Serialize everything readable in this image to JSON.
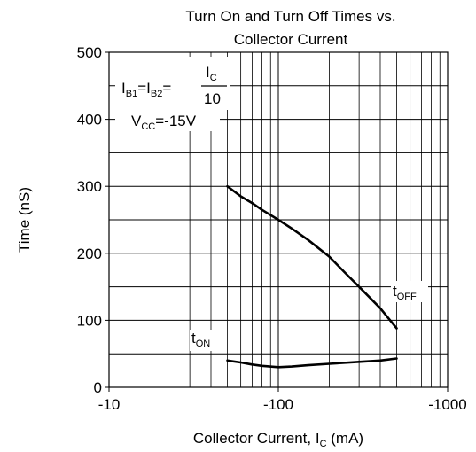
{
  "chart_data": {
    "type": "line",
    "title": [
      "Turn On and Turn Off Times vs.",
      "Collector Current"
    ],
    "xlabel": {
      "text": "Collector Current, I",
      "sub": "C",
      "unit": " (mA)"
    },
    "ylabel": "Time (nS)",
    "x_scale": "log",
    "xlim": [
      -10,
      -1000
    ],
    "ylim": [
      0,
      500
    ],
    "x_ticks": [
      {
        "value": -10,
        "label": "-10"
      },
      {
        "value": -100,
        "label": "-100"
      },
      {
        "value": -1000,
        "label": "-1000"
      }
    ],
    "y_ticks": [
      0,
      100,
      200,
      300,
      400,
      500
    ],
    "grid": true,
    "series": [
      {
        "name": "tOFF",
        "label_main": "t",
        "label_sub": "OFF",
        "x": [
          -50,
          -60,
          -70,
          -80,
          -100,
          -120,
          -150,
          -200,
          -250,
          -300,
          -400,
          -500
        ],
        "y": [
          300,
          285,
          275,
          265,
          250,
          237,
          220,
          195,
          170,
          150,
          118,
          88
        ]
      },
      {
        "name": "tON",
        "label_main": "t",
        "label_sub": "ON",
        "x": [
          -50,
          -60,
          -70,
          -80,
          -100,
          -120,
          -150,
          -200,
          -300,
          -400,
          -500
        ],
        "y": [
          40,
          37,
          34,
          32,
          30,
          31,
          33,
          35,
          38,
          40,
          43
        ]
      }
    ],
    "annotations": {
      "ib": {
        "part1_main": "I",
        "part1_sub": "B1",
        "eq1": "=",
        "part2_main": "I",
        "part2_sub": "B2",
        "eq2": "=",
        "num_main": "I",
        "num_sub": "C",
        "den": "10"
      },
      "vcc": {
        "main": "V",
        "sub": "CC",
        "rest": "=-15V"
      }
    }
  }
}
